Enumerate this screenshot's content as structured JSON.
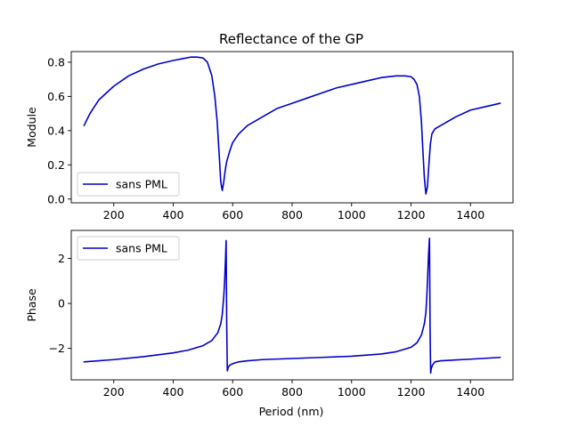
{
  "chart_data": [
    {
      "type": "line",
      "title": "Reflectance of the GP",
      "xlabel": "",
      "ylabel": "Module",
      "xlim": [
        57,
        1543
      ],
      "ylim": [
        -0.022,
        0.862
      ],
      "xticks": [
        "200",
        "400",
        "600",
        "800",
        "1000",
        "1200",
        "1400"
      ],
      "yticks": [
        "0.0",
        "0.2",
        "0.4",
        "0.6",
        "0.8"
      ],
      "legend_position": "lower-left",
      "grid": false,
      "series": [
        {
          "name": "sans PML",
          "color": "#0000cc",
          "x": [
            100,
            120,
            150,
            200,
            250,
            300,
            350,
            400,
            430,
            460,
            480,
            500,
            515,
            530,
            540,
            548,
            555,
            560,
            565,
            570,
            575,
            580,
            590,
            600,
            620,
            650,
            700,
            750,
            800,
            850,
            900,
            950,
            1000,
            1050,
            1100,
            1150,
            1180,
            1200,
            1210,
            1220,
            1228,
            1235,
            1240,
            1245,
            1250,
            1255,
            1260,
            1265,
            1270,
            1280,
            1300,
            1350,
            1400,
            1450,
            1500
          ],
          "y": [
            0.43,
            0.5,
            0.58,
            0.66,
            0.72,
            0.76,
            0.79,
            0.81,
            0.82,
            0.83,
            0.83,
            0.825,
            0.8,
            0.72,
            0.6,
            0.45,
            0.25,
            0.1,
            0.05,
            0.1,
            0.17,
            0.22,
            0.28,
            0.33,
            0.38,
            0.43,
            0.48,
            0.53,
            0.56,
            0.59,
            0.62,
            0.65,
            0.67,
            0.69,
            0.71,
            0.72,
            0.72,
            0.715,
            0.7,
            0.67,
            0.6,
            0.45,
            0.28,
            0.12,
            0.03,
            0.07,
            0.2,
            0.32,
            0.38,
            0.41,
            0.43,
            0.48,
            0.52,
            0.54,
            0.56
          ]
        }
      ]
    },
    {
      "type": "line",
      "title": "",
      "xlabel": "Period (nm)",
      "ylabel": "Phase",
      "xlim": [
        57,
        1543
      ],
      "ylim": [
        -3.4,
        3.25
      ],
      "xticks": [
        "200",
        "400",
        "600",
        "800",
        "1000",
        "1200",
        "1400"
      ],
      "yticks": [
        "−2",
        "0",
        "2"
      ],
      "legend_position": "upper-left",
      "grid": false,
      "series": [
        {
          "name": "sans PML",
          "color": "#0000cc",
          "x": [
            100,
            200,
            300,
            400,
            450,
            500,
            530,
            550,
            560,
            565,
            570,
            573,
            576,
            578,
            580,
            582,
            585,
            590,
            600,
            620,
            650,
            700,
            800,
            900,
            1000,
            1100,
            1150,
            1200,
            1220,
            1235,
            1245,
            1250,
            1253,
            1256,
            1259,
            1262,
            1264,
            1266,
            1268,
            1272,
            1280,
            1300,
            1400,
            1500
          ],
          "y": [
            -2.6,
            -2.5,
            -2.37,
            -2.2,
            -2.08,
            -1.88,
            -1.65,
            -1.3,
            -0.9,
            -0.5,
            0.3,
            1.0,
            2.0,
            2.8,
            -1.0,
            -3.0,
            -2.85,
            -2.75,
            -2.68,
            -2.6,
            -2.55,
            -2.5,
            -2.45,
            -2.4,
            -2.35,
            -2.25,
            -2.15,
            -1.95,
            -1.75,
            -1.4,
            -0.9,
            -0.4,
            0.3,
            1.2,
            2.2,
            2.9,
            -1.0,
            -3.1,
            -2.9,
            -2.75,
            -2.6,
            -2.55,
            -2.48,
            -2.4
          ]
        }
      ]
    }
  ]
}
